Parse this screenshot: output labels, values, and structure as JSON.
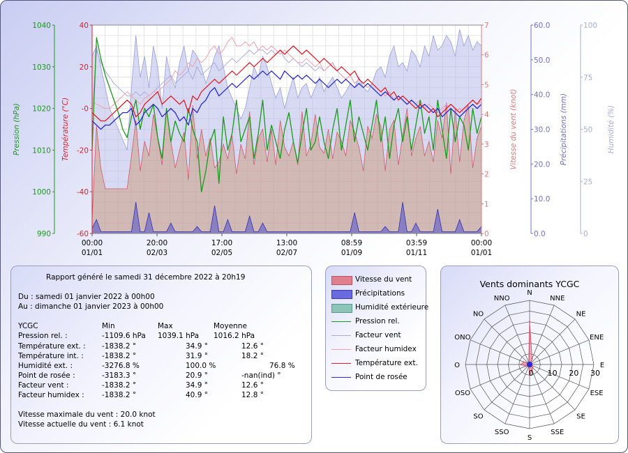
{
  "chart_data": [
    {
      "type": "line",
      "x_ticks": [
        {
          "time": "00:00",
          "date": "01/01"
        },
        {
          "time": "20:00",
          "date": "02/03"
        },
        {
          "time": "17:00",
          "date": "02/05"
        },
        {
          "time": "13:00",
          "date": "02/07"
        },
        {
          "time": "08:59",
          "date": "01/09"
        },
        {
          "time": "03:59",
          "date": "01/11"
        },
        {
          "time": "00:00",
          "date": "01/01"
        }
      ],
      "axes": {
        "pression": {
          "label": "Pression (hPa)",
          "ticks": [
            "990",
            "1000",
            "1010",
            "1020",
            "1030",
            "1040"
          ],
          "range": [
            990,
            1040
          ],
          "color": "#1a9a1a"
        },
        "temperature": {
          "label": "Température (°C)",
          "ticks": [
            "-60",
            "-40",
            "-20",
            "-0",
            "20",
            "40"
          ],
          "range": [
            -60,
            40
          ],
          "color": "#e0202a"
        },
        "vent": {
          "label": "Vitesse du vent (knot)",
          "ticks": [
            "0",
            "1",
            "2",
            "3",
            "4",
            "5",
            "6",
            "7"
          ],
          "range": [
            0,
            7
          ],
          "color": "#e07a7a"
        },
        "precip": {
          "label": "Précipitations (mm)",
          "ticks": [
            "0.0",
            "10.0",
            "20.0",
            "30.0",
            "40.0",
            "50.0",
            "60.0"
          ],
          "range": [
            0,
            60
          ],
          "color": "#7070cc"
        },
        "humidite": {
          "label": "Humidité (%)",
          "ticks": [
            "0",
            "25",
            "50",
            "75",
            "100"
          ],
          "range": [
            0,
            100
          ],
          "color": "#a8acdf"
        }
      },
      "series": [
        {
          "name": "Vitesse du vent",
          "color": "#e06e80",
          "kind": "area",
          "values": [
            0.5,
            3.6,
            2.2,
            1.5,
            1.5,
            1.5,
            1.5,
            1.5,
            1.5,
            2.6,
            3.8,
            2.1,
            3.1,
            2.6,
            4.0,
            3.2,
            2.3,
            4.2,
            3.1,
            2.2,
            2.8,
            3.4,
            1.8,
            4.3,
            2.5,
            3.5,
            2.6,
            3.2,
            2.2,
            2.4,
            3.0,
            2.5,
            3.3,
            2.0,
            3.0,
            2.5,
            4.1,
            2.3,
            3.2,
            3.5,
            2.4,
            3.5,
            2.3,
            3.8,
            2.9,
            2.6,
            3.1,
            2.3,
            4.1,
            2.6,
            3.0,
            4.0,
            2.9,
            2.7,
            3.5,
            2.5,
            3.4,
            3.1,
            2.6,
            3.8,
            3.4,
            2.9,
            2.1,
            3.6,
            3.2,
            4.0,
            3.6,
            2.1,
            3.5,
            3.8,
            2.3,
            3.3,
            4.2,
            2.6,
            3.2,
            3.6,
            2.6,
            3.1,
            2.4,
            3.8,
            3.2,
            4.4,
            2.0,
            4.2,
            2.4,
            3.8,
            4.3,
            2.2,
            3.2,
            3.6
          ]
        },
        {
          "name": "Précipitations",
          "color": "#4a4ad0",
          "kind": "area",
          "values": [
            1.5,
            4.0,
            0.5,
            0.5,
            0.5,
            0.5,
            0.5,
            0.5,
            0.5,
            0.5,
            9.0,
            0.5,
            0.5,
            6.0,
            0.5,
            0.5,
            0.5,
            0.5,
            3.0,
            0.5,
            0.5,
            0.5,
            0.5,
            0.5,
            2.0,
            0.5,
            0.5,
            0.5,
            8.0,
            0.5,
            0.5,
            4.0,
            0.5,
            0.5,
            0.5,
            0.5,
            5.0,
            0.5,
            0.5,
            3.0,
            0.5,
            0.5,
            0.5,
            0.5,
            0.5,
            0.5,
            0.5,
            0.5,
            0.5,
            0.5,
            0.5,
            0.5,
            0.5,
            0.5,
            0.5,
            0.5,
            0.5,
            0.5,
            0.5,
            0.5,
            6.0,
            0.5,
            0.5,
            0.5,
            0.5,
            0.5,
            0.5,
            2.0,
            0.5,
            0.5,
            0.5,
            9.0,
            0.5,
            0.5,
            3.0,
            0.5,
            0.5,
            0.5,
            0.5,
            7.0,
            0.5,
            0.5,
            0.5,
            0.5,
            4.0,
            0.5,
            0.5,
            0.5,
            0.5,
            2.0
          ]
        },
        {
          "name": "Humidité extérieure",
          "color": "#6fb7a6",
          "kind": "area",
          "values": [
            85,
            90,
            80,
            70,
            60,
            55,
            50,
            45,
            40,
            70,
            95,
            75,
            85,
            70,
            90,
            80,
            60,
            85,
            75,
            70,
            82,
            90,
            78,
            88,
            85,
            80,
            72,
            78,
            85,
            90,
            80,
            70,
            65,
            60,
            55,
            60,
            70,
            80,
            75,
            85,
            80,
            72,
            65,
            70,
            60,
            68,
            75,
            65,
            70,
            72,
            65,
            70,
            75,
            68,
            72,
            75,
            70,
            65,
            68,
            72,
            70,
            75,
            70,
            68,
            72,
            78,
            80,
            75,
            85,
            90,
            80,
            82,
            78,
            88,
            85,
            80,
            90,
            85,
            95,
            88,
            90,
            95,
            92,
            85,
            98,
            90,
            95,
            88,
            92,
            90
          ]
        },
        {
          "name": "Pression rel.",
          "color": "#1a9a1a",
          "kind": "line",
          "values": [
            1010,
            1037,
            1032,
            1028,
            1025,
            1022,
            1019,
            1015,
            1013,
            1018,
            1022,
            1015,
            1020,
            1018,
            1021,
            1013,
            1008,
            1020,
            1012,
            1017,
            1014,
            1012,
            1020,
            1015,
            1012,
            1000,
            1005,
            1012,
            1015,
            1002,
            1018,
            1010,
            1014,
            1022,
            1012,
            1015,
            1018,
            1008,
            1014,
            1022,
            1010,
            1016,
            1012,
            1008,
            1015,
            1019,
            1012,
            1007,
            1014,
            1020,
            1010,
            1012,
            1018,
            1012,
            1008,
            1015,
            1020,
            1010,
            1016,
            1022,
            1012,
            1018,
            1014,
            1010,
            1016,
            1022,
            1012,
            1018,
            1008,
            1016,
            1020,
            1012,
            1018,
            1010,
            1016,
            1022,
            1014,
            1018,
            1010,
            1022,
            1015,
            1008,
            1020,
            1012,
            1018,
            1016,
            1010,
            1020,
            1014,
            1018
          ]
        },
        {
          "name": "Facteur vent",
          "color": "#aaaadd",
          "kind": "line",
          "values": [
            -2,
            28,
            22,
            18,
            15,
            12,
            10,
            8,
            6,
            6,
            8,
            6,
            8,
            6,
            8,
            10,
            12,
            14,
            16,
            12,
            14,
            16,
            18,
            14,
            20,
            16,
            18,
            20,
            22,
            18,
            20,
            22,
            24,
            22,
            24,
            26,
            28,
            26,
            28,
            28,
            26,
            28,
            26,
            28,
            24,
            22,
            24,
            22,
            20,
            22,
            20,
            18,
            20,
            18,
            20,
            22,
            18,
            16,
            14,
            16,
            12,
            14,
            12,
            10,
            12,
            10,
            8,
            6,
            8,
            4,
            6,
            4,
            2,
            4,
            2,
            4,
            0,
            2,
            0,
            -2,
            0,
            2,
            0,
            -2,
            0,
            -2,
            2,
            4,
            2,
            3
          ]
        },
        {
          "name": "Facteur humidex",
          "color": "#f0a0b0",
          "kind": "line",
          "values": [
            3,
            2,
            1,
            0,
            0,
            2,
            4,
            6,
            8,
            6,
            4,
            2,
            5,
            6,
            8,
            8,
            10,
            12,
            14,
            18,
            16,
            18,
            22,
            20,
            24,
            22,
            24,
            28,
            30,
            26,
            28,
            32,
            34,
            30,
            30,
            32,
            30,
            32,
            28,
            30,
            28,
            30,
            28,
            26,
            28,
            26,
            24,
            22,
            22,
            24,
            22,
            20,
            22,
            18,
            20,
            22,
            18,
            16,
            14,
            16,
            12,
            14,
            12,
            10,
            12,
            10,
            8,
            6,
            8,
            4,
            6,
            4,
            2,
            4,
            2,
            4,
            0,
            2,
            0,
            -2,
            0,
            2,
            0,
            -2,
            0,
            -2,
            2,
            4,
            2,
            3
          ]
        },
        {
          "name": "Température ext.",
          "color": "#e0202a",
          "kind": "line",
          "values": [
            -2,
            -4,
            -6,
            -6,
            -4,
            -2,
            0,
            2,
            4,
            2,
            -4,
            -2,
            2,
            4,
            6,
            8,
            2,
            4,
            6,
            4,
            2,
            4,
            -2,
            6,
            4,
            8,
            10,
            12,
            14,
            12,
            14,
            16,
            18,
            16,
            18,
            20,
            22,
            20,
            22,
            24,
            22,
            24,
            26,
            28,
            26,
            28,
            30,
            28,
            26,
            28,
            26,
            24,
            22,
            24,
            22,
            20,
            18,
            20,
            18,
            16,
            18,
            14,
            12,
            14,
            12,
            10,
            8,
            10,
            6,
            8,
            4,
            6,
            4,
            2,
            0,
            2,
            0,
            -2,
            0,
            -4,
            -2,
            0,
            2,
            0,
            -2,
            0,
            2,
            4,
            2,
            5
          ]
        },
        {
          "name": "Point de rosée",
          "color": "#2a2ad0",
          "kind": "line",
          "values": [
            -6,
            -8,
            -10,
            -8,
            -8,
            -6,
            -4,
            -2,
            -2,
            0,
            -8,
            -6,
            -2,
            0,
            2,
            0,
            -4,
            -2,
            0,
            -2,
            -6,
            -4,
            -8,
            0,
            -2,
            2,
            4,
            8,
            10,
            6,
            8,
            10,
            12,
            10,
            12,
            14,
            16,
            14,
            16,
            18,
            16,
            18,
            16,
            14,
            18,
            16,
            14,
            16,
            14,
            16,
            14,
            12,
            14,
            12,
            10,
            12,
            14,
            12,
            14,
            12,
            10,
            12,
            10,
            12,
            10,
            8,
            6,
            8,
            6,
            4,
            6,
            4,
            2,
            4,
            2,
            0,
            2,
            0,
            -2,
            0,
            -4,
            -2,
            0,
            -2,
            -4,
            -2,
            0,
            2,
            0,
            2
          ]
        }
      ]
    },
    {
      "type": "radar",
      "title": "Vents dominants YCGC",
      "directions": [
        "N",
        "NNE",
        "NE",
        "ENE",
        "E",
        "ESE",
        "SE",
        "SSE",
        "S",
        "SSO",
        "SO",
        "OSO",
        "O",
        "ONO",
        "NO",
        "NNO"
      ],
      "values": [
        20,
        3,
        1,
        1,
        1,
        1,
        2,
        3,
        5,
        1,
        1,
        2,
        4,
        3,
        1,
        1
      ],
      "ticks": [
        "0",
        "10",
        "20",
        "30"
      ],
      "rmax": 30,
      "color": "#e06e80"
    }
  ],
  "legend": [
    {
      "label": "Vitesse du vent",
      "kind": "swatch",
      "color": "#e07f8e"
    },
    {
      "label": "Précipitations",
      "kind": "swatch",
      "color": "#6a6ae0"
    },
    {
      "label": "Humidité extérieure",
      "kind": "swatch",
      "color": "#8cc5b8"
    },
    {
      "label": "Pression rel.",
      "kind": "line",
      "color": "#1a9a1a"
    },
    {
      "label": "Facteur vent",
      "kind": "line",
      "color": "#aaaadd"
    },
    {
      "label": "Facteur humidex",
      "kind": "line",
      "color": "#f0a0b0"
    },
    {
      "label": "Température ext.",
      "kind": "line",
      "color": "#e0202a"
    },
    {
      "label": "Point de rosée",
      "kind": "line",
      "color": "#2a2ad0"
    }
  ],
  "report": {
    "title": "Rapport généré le samedi 31 décembre 2022 à 20h19",
    "from": "Du : samedi 01 janvier 2022 à 00h00",
    "to": "Au : dimanche 01 janvier 2023 à 00h00",
    "station": "YCGC",
    "col_min": "Min",
    "col_max": "Max",
    "col_avg": "Moyenne",
    "rows": [
      {
        "label": "Pression rel. :",
        "min": "-1109.6 hPa",
        "max": "1039.1 hPa",
        "avg": "1016.2 hPa"
      },
      {
        "label": "Température ext. :",
        "min": "-1838.2 °",
        "max": "34.9 °",
        "avg": "12.6 °"
      },
      {
        "label": "Température int. :",
        "min": "-1838.2 °",
        "max": "31.9 °",
        "avg": "18.2 °"
      },
      {
        "label": "Humidité ext. :",
        "min": "-3276.8 %",
        "max": "100.0 %",
        "avg": "76.8 %"
      },
      {
        "label": "Point de rosée :",
        "min": "-3183.3 °",
        "max": "20.9 °",
        "avg": "-nan(ind) °"
      },
      {
        "label": "Facteur vent :",
        "min": "-1838.2 °",
        "max": "34.9 °",
        "avg": "12.6 °"
      },
      {
        "label": "Facteur humidex :",
        "min": "-1838.2 °",
        "max": "40.9 °",
        "avg": "12.8 °"
      }
    ],
    "wind_max": "Vitesse maximale du vent : 20.0 knot",
    "wind_now": "Vitesse actuelle du vent : 6.1 knot"
  }
}
